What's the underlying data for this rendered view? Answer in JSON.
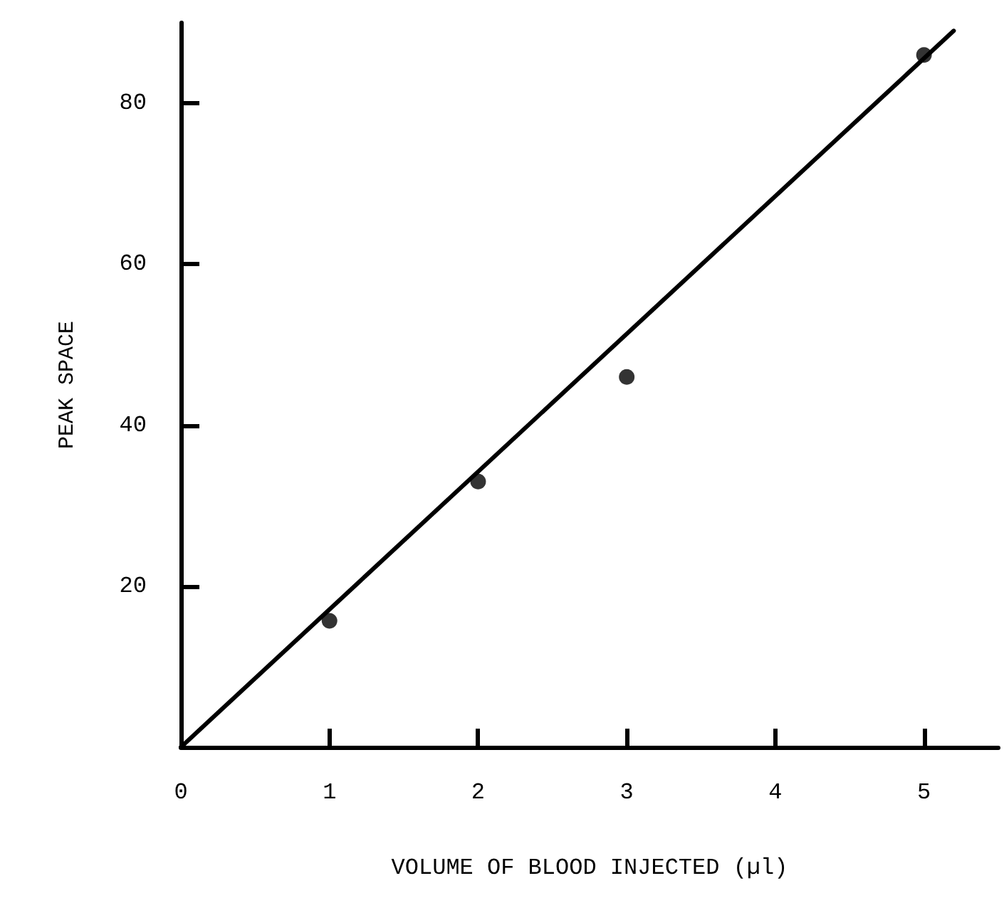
{
  "chart_data": {
    "type": "scatter",
    "xlabel": "VOLUME OF BLOOD INJECTED (µl)",
    "ylabel": "PEAK SPACE",
    "x": [
      1,
      2,
      3,
      5
    ],
    "series": [
      {
        "color": "#000000",
        "values": [
          15.7,
          33,
          46,
          86
        ],
        "marker": "circle"
      },
      {
        "type": "line",
        "color": "#000000",
        "x": [
          0,
          5.2
        ],
        "values": [
          0,
          89
        ],
        "marker": "none",
        "line_style": "solid"
      }
    ],
    "xlim": [
      0,
      5.5
    ],
    "xticks": [
      0,
      1,
      2,
      3,
      4,
      5
    ],
    "ylim": [
      0,
      90
    ],
    "yticks": [
      20,
      40,
      60,
      80
    ],
    "grid": false
  }
}
